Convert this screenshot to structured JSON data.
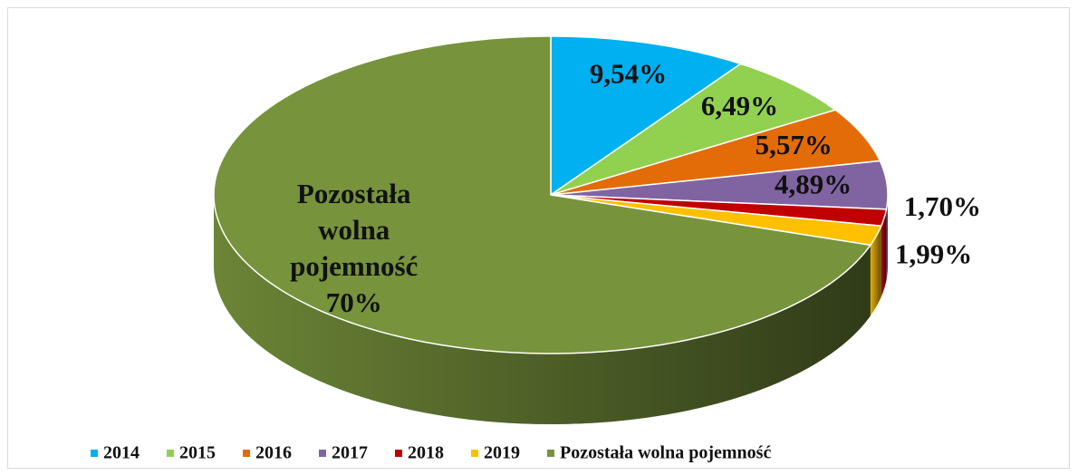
{
  "chart_data": {
    "type": "pie",
    "categories": [
      "2014",
      "2015",
      "2016",
      "2017",
      "2018",
      "2019",
      "Pozostała wolna pojemność"
    ],
    "values": [
      9.54,
      6.49,
      5.57,
      4.89,
      1.7,
      1.99,
      70
    ],
    "value_labels": [
      "9,54%",
      "6,49%",
      "5,57%",
      "4,89%",
      "1,70%",
      "1,99%",
      "70%"
    ],
    "colors": [
      "#00b0f0",
      "#92d050",
      "#e36c09",
      "#8064a2",
      "#c00000",
      "#ffc000",
      "#77933c"
    ],
    "legend": "bottom"
  }
}
